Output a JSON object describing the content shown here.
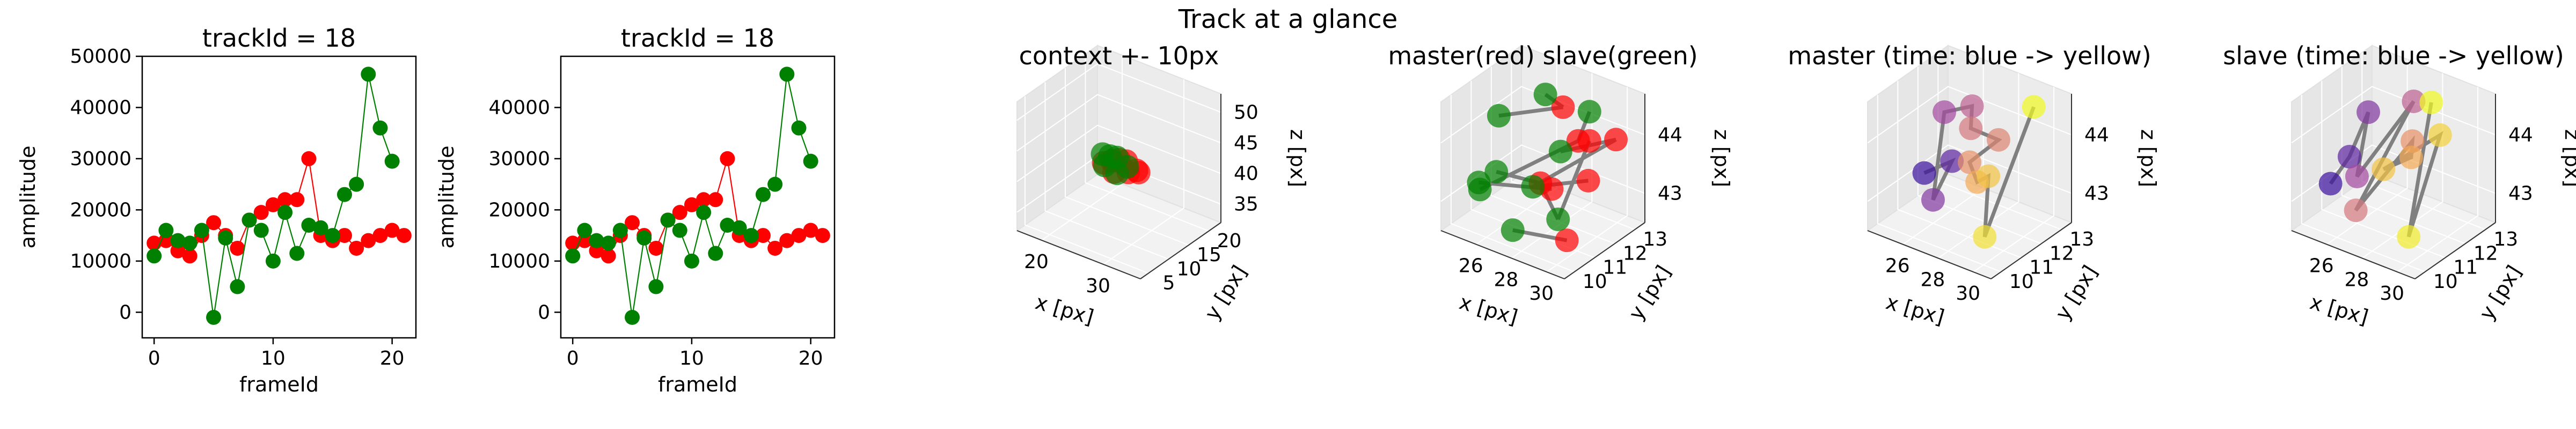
{
  "suptitle": "Track at a glance",
  "colors": {
    "master": "#ff0000",
    "slave": "#008000",
    "link": "#808080",
    "time_start": "#3b10a0",
    "time_mid": "#b04fa0",
    "time_mid2": "#f6a15a",
    "time_end": "#f0f921"
  },
  "chart_data": [
    {
      "type": "line",
      "title": "trackId = 18",
      "xlabel": "frameId",
      "ylabel": "amplitude",
      "xlim": [
        -1,
        22
      ],
      "ylim": [
        -5000,
        50000
      ],
      "xticks": [
        0,
        10,
        20
      ],
      "yticks": [
        0,
        10000,
        20000,
        30000,
        40000,
        50000
      ],
      "ytick_labels": [
        "0",
        "10000",
        "20000",
        "30000",
        "40000",
        "50000"
      ],
      "x": [
        0,
        1,
        2,
        3,
        4,
        5,
        6,
        7,
        8,
        9,
        10,
        11,
        12,
        13,
        14,
        15,
        16,
        17,
        18,
        19,
        20,
        21
      ],
      "series": [
        {
          "color": "#ff0000",
          "values": [
            13500,
            14000,
            12000,
            11000,
            15000,
            17500,
            15000,
            12500,
            18000,
            19500,
            21000,
            22000,
            22000,
            30000,
            15000,
            14000,
            15000,
            12500,
            14000,
            15000,
            16000,
            15000
          ]
        },
        {
          "color": "#008000",
          "values": [
            11000,
            16000,
            14000,
            13500,
            16000,
            -1000,
            14500,
            5000,
            18000,
            16000,
            10000,
            19500,
            11500,
            17000,
            16500,
            15000,
            23000,
            25000,
            46500,
            36000,
            29500,
            null
          ]
        }
      ]
    },
    {
      "type": "line",
      "title": "trackId = 18",
      "xlabel": "frameId",
      "ylabel": "amplitude",
      "xlim": [
        -1,
        22
      ],
      "ylim": [
        -5000,
        50000
      ],
      "xticks": [
        0,
        10,
        20
      ],
      "yticks": [
        0,
        10000,
        20000,
        30000,
        40000
      ],
      "ytick_labels": [
        "0",
        "10000",
        "20000",
        "30000",
        "40000"
      ],
      "x": [
        0,
        1,
        2,
        3,
        4,
        5,
        6,
        7,
        8,
        9,
        10,
        11,
        12,
        13,
        14,
        15,
        16,
        17,
        18,
        19,
        20,
        21
      ],
      "series": [
        {
          "color": "#ff0000",
          "values": [
            13500,
            14000,
            12000,
            11000,
            15000,
            17500,
            15000,
            12500,
            18000,
            19500,
            21000,
            22000,
            22000,
            30000,
            15000,
            14000,
            15000,
            12500,
            14000,
            15000,
            16000,
            15000
          ]
        },
        {
          "color": "#008000",
          "values": [
            11000,
            16000,
            14000,
            13500,
            16000,
            -1000,
            14500,
            5000,
            18000,
            16000,
            10000,
            19500,
            11500,
            17000,
            16500,
            15000,
            23000,
            25000,
            46500,
            36000,
            29500,
            null
          ]
        }
      ]
    },
    {
      "type": "scatter",
      "title": "context +- 10px",
      "xlabel": "x [px]",
      "ylabel": "y [px]",
      "zlabel": "z [px]",
      "xlim": [
        16,
        36
      ],
      "ylim": [
        3,
        23
      ],
      "zlim": [
        32,
        53
      ],
      "xticks": [
        20,
        30
      ],
      "yticks": [
        5,
        10,
        15,
        20
      ],
      "zticks": [
        35,
        40,
        45,
        50
      ],
      "points": [
        {
          "x": 24.5,
          "y": 11.5,
          "z": 42.5,
          "s": "red"
        },
        {
          "x": 25.5,
          "y": 12,
          "z": 43,
          "s": "red"
        },
        {
          "x": 26.5,
          "y": 11,
          "z": 42,
          "s": "red"
        },
        {
          "x": 27.5,
          "y": 12.5,
          "z": 43.5,
          "s": "red"
        },
        {
          "x": 28.5,
          "y": 11.5,
          "z": 42.5,
          "s": "red"
        },
        {
          "x": 29.5,
          "y": 12,
          "z": 43,
          "s": "red"
        },
        {
          "x": 30.5,
          "y": 11,
          "z": 43.5,
          "s": "red"
        },
        {
          "x": 27,
          "y": 11.5,
          "z": 44,
          "s": "red"
        },
        {
          "x": 24,
          "y": 12,
          "z": 43.5,
          "s": "green"
        },
        {
          "x": 25,
          "y": 11,
          "z": 42.5,
          "s": "green"
        },
        {
          "x": 26,
          "y": 12.5,
          "z": 43.5,
          "s": "green"
        },
        {
          "x": 27,
          "y": 11,
          "z": 42,
          "s": "green"
        },
        {
          "x": 28,
          "y": 12,
          "z": 43,
          "s": "green"
        },
        {
          "x": 25.5,
          "y": 11.5,
          "z": 44,
          "s": "green"
        }
      ],
      "links": [
        [
          0,
          8
        ],
        [
          1,
          9
        ],
        [
          2,
          10
        ],
        [
          3,
          11
        ],
        [
          4,
          12
        ],
        [
          5,
          13
        ],
        [
          6,
          8
        ],
        [
          7,
          9
        ]
      ]
    },
    {
      "type": "scatter",
      "title": "master(red) slave(green)",
      "xlabel": "x [px]",
      "ylabel": "y [px]",
      "zlabel": "z [px]",
      "xlim": [
        24,
        31
      ],
      "ylim": [
        9.5,
        13.5
      ],
      "zlim": [
        42.5,
        44.7
      ],
      "xticks": [
        26,
        28,
        30
      ],
      "yticks": [
        10,
        11,
        12,
        13
      ],
      "zticks": [
        43,
        44
      ],
      "points": [
        {
          "x": 27.5,
          "y": 12.5,
          "z": 44.3,
          "s": "red"
        },
        {
          "x": 29.5,
          "y": 11.5,
          "z": 44.2,
          "s": "red"
        },
        {
          "x": 30.5,
          "y": 12.5,
          "z": 44.1,
          "s": "red"
        },
        {
          "x": 28.5,
          "y": 10.5,
          "z": 43.6,
          "s": "red"
        },
        {
          "x": 29.5,
          "y": 12,
          "z": 43.4,
          "s": "red"
        },
        {
          "x": 28,
          "y": 11.5,
          "z": 43.2,
          "s": "red"
        },
        {
          "x": 30,
          "y": 10.5,
          "z": 42.8,
          "s": "red"
        },
        {
          "x": 29,
          "y": 12.5,
          "z": 43.9,
          "s": "red"
        },
        {
          "x": 26.5,
          "y": 12.5,
          "z": 44.4,
          "s": "green"
        },
        {
          "x": 29,
          "y": 12.5,
          "z": 44.4,
          "s": "green"
        },
        {
          "x": 25,
          "y": 11.5,
          "z": 44.1,
          "s": "green"
        },
        {
          "x": 28.5,
          "y": 11.5,
          "z": 43.9,
          "s": "green"
        },
        {
          "x": 26,
          "y": 10.5,
          "z": 43.5,
          "s": "green"
        },
        {
          "x": 27.5,
          "y": 11,
          "z": 43.3,
          "s": "green"
        },
        {
          "x": 25,
          "y": 10.5,
          "z": 43.2,
          "s": "green"
        },
        {
          "x": 24.5,
          "y": 11,
          "z": 42.9,
          "s": "green"
        },
        {
          "x": 27.5,
          "y": 10,
          "z": 42.8,
          "s": "green"
        },
        {
          "x": 29.5,
          "y": 10.5,
          "z": 43.1,
          "s": "green"
        }
      ],
      "links": [
        [
          0,
          8
        ],
        [
          1,
          9
        ],
        [
          2,
          11
        ],
        [
          3,
          12
        ],
        [
          4,
          13
        ],
        [
          5,
          14
        ],
        [
          6,
          16
        ],
        [
          7,
          17
        ],
        [
          0,
          10
        ],
        [
          1,
          15
        ],
        [
          2,
          13
        ],
        [
          3,
          17
        ]
      ]
    },
    {
      "type": "scatter",
      "title": "master (time: blue -> yellow)",
      "xlabel": "x [px]",
      "ylabel": "y [px]",
      "zlabel": "z [px]",
      "xlim": [
        24,
        31
      ],
      "ylim": [
        9.5,
        13.5
      ],
      "zlim": [
        42.5,
        44.7
      ],
      "xticks": [
        26,
        28,
        30
      ],
      "yticks": [
        10,
        11,
        12,
        13
      ],
      "zticks": [
        43,
        44
      ],
      "points": [
        {
          "x": 25.5,
          "y": 11,
          "z": 43.3,
          "t": 0.0
        },
        {
          "x": 26.5,
          "y": 11.5,
          "z": 43.5,
          "t": 0.1
        },
        {
          "x": 26,
          "y": 11,
          "z": 42.9,
          "t": 0.2
        },
        {
          "x": 25.5,
          "y": 12,
          "z": 44.1,
          "t": 0.3
        },
        {
          "x": 26.5,
          "y": 12.5,
          "z": 44.2,
          "t": 0.4
        },
        {
          "x": 27,
          "y": 12,
          "z": 44.0,
          "t": 0.5
        },
        {
          "x": 28,
          "y": 12.5,
          "z": 43.8,
          "t": 0.55
        },
        {
          "x": 27.5,
          "y": 11.5,
          "z": 43.6,
          "t": 0.6
        },
        {
          "x": 28.5,
          "y": 11,
          "z": 43.5,
          "t": 0.7
        },
        {
          "x": 28,
          "y": 12,
          "z": 43.3,
          "t": 0.8
        },
        {
          "x": 29.5,
          "y": 10.5,
          "z": 42.8,
          "t": 0.9
        },
        {
          "x": 30,
          "y": 12.5,
          "z": 44.6,
          "t": 1.0
        }
      ]
    },
    {
      "type": "scatter",
      "title": "slave (time: blue -> yellow)",
      "xlabel": "x [px]",
      "ylabel": "y [px]",
      "zlabel": "z [px]",
      "xlim": [
        24,
        31
      ],
      "ylim": [
        9.5,
        13.5
      ],
      "zlim": [
        42.5,
        44.7
      ],
      "xticks": [
        26,
        28,
        30
      ],
      "yticks": [
        10,
        11,
        12,
        13
      ],
      "zticks": [
        43,
        44
      ],
      "points": [
        {
          "x": 24.5,
          "y": 11,
          "z": 43.0,
          "t": 0.0
        },
        {
          "x": 25,
          "y": 11.5,
          "z": 43.4,
          "t": 0.1
        },
        {
          "x": 25.5,
          "y": 12,
          "z": 44.1,
          "t": 0.2
        },
        {
          "x": 26,
          "y": 11,
          "z": 43.3,
          "t": 0.3
        },
        {
          "x": 27.5,
          "y": 12.5,
          "z": 44.4,
          "t": 0.4
        },
        {
          "x": 26.5,
          "y": 10.5,
          "z": 42.9,
          "t": 0.5
        },
        {
          "x": 28,
          "y": 12,
          "z": 43.9,
          "t": 0.6
        },
        {
          "x": 28.5,
          "y": 11.5,
          "z": 43.8,
          "t": 0.7
        },
        {
          "x": 27.5,
          "y": 11,
          "z": 43.6,
          "t": 0.8
        },
        {
          "x": 29,
          "y": 12.5,
          "z": 44.0,
          "t": 0.85
        },
        {
          "x": 29.5,
          "y": 10.5,
          "z": 42.8,
          "t": 0.95
        },
        {
          "x": 28.5,
          "y": 12.5,
          "z": 44.5,
          "t": 1.0
        }
      ]
    }
  ]
}
